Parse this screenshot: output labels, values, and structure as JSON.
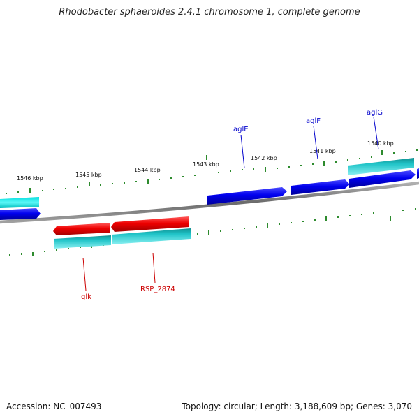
{
  "title": "Rhodobacter sphaeroides 2.4.1 chromosome 1, complete genome",
  "footer": {
    "accession": "Accession: NC_007493",
    "summary": "Topology: circular; Length: 3,188,609 bp; Genes: 3,070"
  },
  "colors": {
    "forward_gene": "#0000ee",
    "reverse_gene": "#e00000",
    "cds": "#20c4c8",
    "backbone": "#808080",
    "scale": "#2e8b2e",
    "forward_label": "#0000cc",
    "reverse_label": "#cc0000"
  },
  "scale": {
    "unit": "kbp",
    "ticks": [
      "1546 kbp",
      "1545 kbp",
      "1544 kbp",
      "1543 kbp",
      "1542 kbp",
      "1541 kbp",
      "1540 kbp"
    ]
  },
  "genes": {
    "forward": [
      "aglE",
      "aglF",
      "aglG"
    ],
    "reverse": [
      "glk",
      "RSP_2874"
    ]
  }
}
